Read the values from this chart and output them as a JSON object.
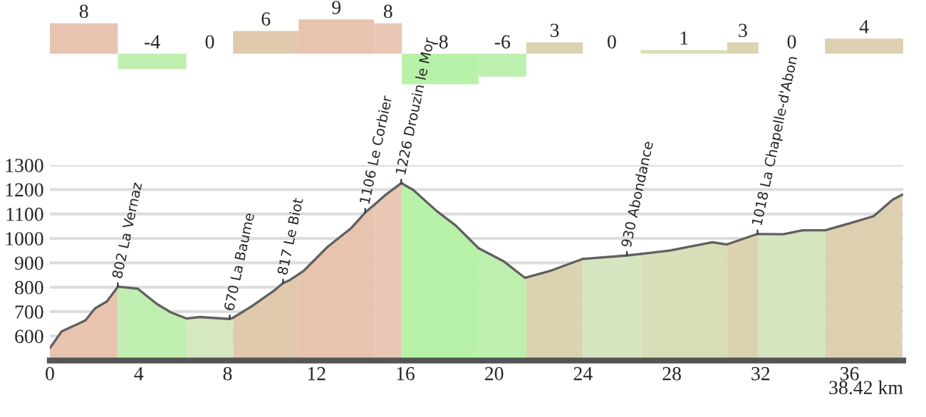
{
  "chart_data": [
    {
      "type": "bar",
      "x": [
        1.53,
        4.605,
        7.2,
        9.725,
        12.9,
        15.225,
        17.575,
        20.375,
        22.725,
        25.3,
        28.55,
        31.2,
        33.4,
        36.66
      ],
      "xlim": [
        0,
        38.42
      ],
      "values": [
        8,
        -4,
        0,
        6,
        9,
        8,
        -8,
        -6,
        3,
        0,
        1,
        3,
        0,
        4
      ],
      "colors": [
        "#e8c4b0",
        "#c0eeb0",
        "#d5e8c0",
        "#e0c9ad",
        "#e8c4b0",
        "#e8c8b4",
        "#b8f2a8",
        "#bdf0ae",
        "#dbd3b0",
        "#d5e6c0",
        "#d8dfb8",
        "#dbd3b0",
        "#d5e6c0",
        "#dcd0b0"
      ],
      "data_labels": true,
      "tick_labels": false
    },
    {
      "type": "area",
      "xlim": [
        0,
        38.42
      ],
      "ylim": [
        500,
        1300
      ],
      "xticks": [
        0,
        4,
        8,
        12,
        16,
        20,
        24,
        28,
        32,
        36
      ],
      "yticks": [
        600,
        700,
        800,
        900,
        1000,
        1100,
        1200,
        1300
      ],
      "grid": "y",
      "xlabel": "38.42 km",
      "series": [
        {
          "color": "#e8c4b0",
          "x": [
            0,
            0.53,
            1.6,
            2.03,
            2.57,
            3.06
          ],
          "values": [
            551,
            619,
            664,
            713,
            742,
            802
          ]
        },
        {
          "color": "#c0eeb0",
          "x": [
            3.06,
            3.96,
            4.81,
            5.45,
            6.15
          ],
          "values": [
            802,
            794,
            732,
            697,
            672
          ]
        },
        {
          "color": "#d5e8c0",
          "x": [
            6.15,
            6.74,
            8.1,
            8.25
          ],
          "values": [
            672,
            678,
            670,
            675
          ]
        },
        {
          "color": "#e0c9ad",
          "x": [
            8.25,
            9.09,
            10.15,
            10.5,
            10.8,
            11.2
          ],
          "values": [
            675,
            722,
            790,
            817,
            829,
            853
          ]
        },
        {
          "color": "#e8c4b0",
          "x": [
            11.2,
            11.44,
            12.5,
            13.58,
            14.2,
            14.6
          ],
          "values": [
            853,
            868,
            965,
            1043,
            1106,
            1137
          ]
        },
        {
          "color": "#e8c8b4",
          "x": [
            14.6,
            15.07,
            15.82,
            15.85
          ],
          "values": [
            1137,
            1175,
            1226,
            1225
          ]
        },
        {
          "color": "#b8f2a8",
          "x": [
            15.85,
            16.36,
            17.43,
            18.28,
            19.3
          ],
          "values": [
            1225,
            1198,
            1111,
            1052,
            960
          ]
        },
        {
          "color": "#bdf0ae",
          "x": [
            19.3,
            20.42,
            21.38,
            21.45
          ],
          "values": [
            960,
            907,
            839,
            840
          ]
        },
        {
          "color": "#dbd3b0",
          "x": [
            21.45,
            22.56,
            24.0
          ],
          "values": [
            840,
            868,
            916
          ]
        },
        {
          "color": "#d5e6c0",
          "x": [
            24.0,
            25.98,
            26.6
          ],
          "values": [
            916,
            930,
            936
          ]
        },
        {
          "color": "#d8dfb8",
          "x": [
            26.6,
            27.9,
            29.83,
            30.47,
            30.5
          ],
          "values": [
            936,
            950,
            984,
            975,
            976
          ]
        },
        {
          "color": "#dbd3b0",
          "x": [
            30.5,
            31.86,
            31.9
          ],
          "values": [
            976,
            1018,
            1018
          ]
        },
        {
          "color": "#d5e6c0",
          "x": [
            31.9,
            33.03,
            33.89,
            34.9
          ],
          "values": [
            1018,
            1017,
            1033,
            1033
          ]
        },
        {
          "color": "#dcd0b0",
          "x": [
            34.9,
            36.03,
            37.09,
            37.95,
            38.38
          ],
          "values": [
            1033,
            1062,
            1091,
            1159,
            1179
          ]
        }
      ],
      "annotations": [
        {
          "text": "802 La Vernaz",
          "x": 3.06,
          "y": 802
        },
        {
          "text": "670 La Baume",
          "x": 8.1,
          "y": 670
        },
        {
          "text": "817 Le Biot",
          "x": 10.5,
          "y": 817
        },
        {
          "text": "1106 Le Corbier",
          "x": 14.2,
          "y": 1106
        },
        {
          "text": "1226 Drouzin le Mor",
          "x": 15.82,
          "y": 1226
        },
        {
          "text": "930 Abondance",
          "x": 25.98,
          "y": 930
        },
        {
          "text": "1018 La Chapelle-d'Abon",
          "x": 31.86,
          "y": 1018
        }
      ]
    }
  ]
}
